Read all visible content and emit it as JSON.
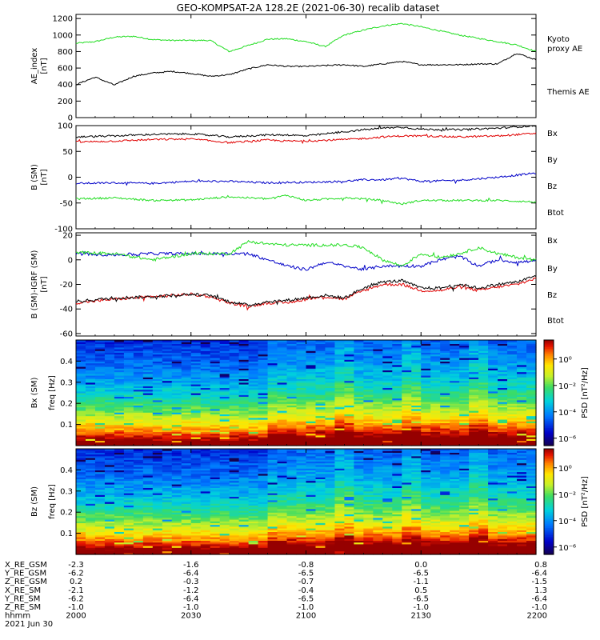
{
  "title": "GEO-KOMPSAT-2A 128.2E (2021-06-30) recalib dataset",
  "colors": {
    "black": "#000000",
    "red": "#e00000",
    "blue": "#0000c8",
    "green": "#22dd22",
    "kyoto": "#22dd22"
  },
  "chart_data": [
    {
      "type": "line",
      "ylabel": "AE_index",
      "yunit": "[nT]",
      "ylim": [
        0,
        1250
      ],
      "yticks": [
        "0",
        "200",
        "400",
        "600",
        "800",
        "1000",
        "1200"
      ],
      "xlim": [
        0,
        120
      ],
      "series": [
        {
          "name": "Kyoto\nproxy AE",
          "label_lines": [
            "Kyoto",
            "proxy AE"
          ],
          "color": "#22dd22",
          "x": [
            0,
            5,
            10,
            15,
            20,
            25,
            30,
            35,
            40,
            45,
            50,
            55,
            60,
            65,
            70,
            75,
            80,
            85,
            90,
            95,
            100,
            105,
            110,
            115,
            120
          ],
          "y": [
            900,
            920,
            975,
            985,
            945,
            935,
            935,
            935,
            800,
            875,
            950,
            955,
            920,
            860,
            1000,
            1060,
            1110,
            1140,
            1100,
            1050,
            1000,
            960,
            920,
            880,
            800
          ]
        },
        {
          "name": "Themis AE",
          "label_lines": [
            "Themis AE"
          ],
          "color": "#000000",
          "x": [
            0,
            5,
            10,
            15,
            20,
            25,
            30,
            35,
            40,
            45,
            50,
            55,
            60,
            65,
            70,
            75,
            80,
            85,
            90,
            95,
            100,
            105,
            110,
            115,
            120
          ],
          "y": [
            400,
            490,
            395,
            500,
            540,
            560,
            535,
            500,
            520,
            590,
            640,
            620,
            620,
            630,
            640,
            620,
            650,
            680,
            640,
            640,
            640,
            650,
            650,
            780,
            700
          ]
        }
      ]
    },
    {
      "type": "line",
      "ylabel": "B (SM)",
      "yunit": "[nT]",
      "ylim": [
        -100,
        100
      ],
      "yticks": [
        "-100",
        "-50",
        "0",
        "50",
        "100"
      ],
      "xlim": [
        0,
        120
      ],
      "series": [
        {
          "name": "Bx",
          "color": "#0000c8",
          "x": [
            0,
            10,
            20,
            30,
            40,
            50,
            55,
            60,
            70,
            75,
            80,
            85,
            90,
            100,
            110,
            120
          ],
          "y": [
            -12,
            -11,
            -12,
            -8,
            -8,
            -11,
            -10,
            -10,
            -8,
            -5,
            -5,
            -2,
            -8,
            -6,
            0,
            8
          ]
        },
        {
          "name": "By",
          "color": "#22dd22",
          "x": [
            0,
            10,
            20,
            30,
            40,
            50,
            55,
            60,
            70,
            75,
            80,
            85,
            90,
            100,
            110,
            120
          ],
          "y": [
            -42,
            -40,
            -45,
            -44,
            -38,
            -42,
            -35,
            -45,
            -40,
            -42,
            -45,
            -52,
            -45,
            -45,
            -45,
            -48
          ]
        },
        {
          "name": "Bz",
          "color": "#e00000",
          "x": [
            0,
            10,
            20,
            30,
            40,
            50,
            55,
            60,
            70,
            75,
            80,
            85,
            90,
            100,
            110,
            120
          ],
          "y": [
            68,
            70,
            73,
            74,
            67,
            72,
            70,
            70,
            73,
            75,
            78,
            80,
            80,
            78,
            80,
            85
          ]
        },
        {
          "name": "Btot",
          "color": "#000000",
          "x": [
            0,
            10,
            20,
            30,
            40,
            50,
            55,
            60,
            70,
            75,
            80,
            85,
            90,
            100,
            110,
            120
          ],
          "y": [
            78,
            80,
            83,
            84,
            78,
            82,
            82,
            80,
            88,
            92,
            95,
            97,
            93,
            92,
            95,
            100
          ]
        }
      ]
    },
    {
      "type": "line",
      "ylabel": "B (SM)-IGRF (SM)",
      "yunit": "[nT]",
      "ylim": [
        -62,
        22
      ],
      "yticks": [
        "-60",
        "-40",
        "-20",
        "0",
        "20"
      ],
      "xlim": [
        0,
        120
      ],
      "series": [
        {
          "name": "Bx",
          "color": "#0000c8",
          "x": [
            0,
            10,
            20,
            30,
            35,
            40,
            45,
            50,
            55,
            60,
            65,
            70,
            75,
            80,
            85,
            90,
            95,
            100,
            105,
            110,
            115,
            120
          ],
          "y": [
            5,
            4,
            5,
            5,
            5,
            5,
            5,
            0,
            -5,
            -8,
            -2,
            -5,
            -8,
            -5,
            -5,
            -5,
            0,
            3,
            -5,
            0,
            -2,
            -1
          ]
        },
        {
          "name": "By",
          "color": "#22dd22",
          "x": [
            0,
            10,
            20,
            30,
            35,
            40,
            45,
            50,
            55,
            60,
            65,
            70,
            75,
            80,
            85,
            90,
            95,
            100,
            105,
            110,
            115,
            120
          ],
          "y": [
            6,
            5,
            0,
            5,
            5,
            5,
            15,
            13,
            12,
            12,
            12,
            12,
            10,
            0,
            -5,
            5,
            2,
            5,
            10,
            5,
            2,
            0
          ]
        },
        {
          "name": "Bz",
          "color": "#e00000",
          "x": [
            0,
            10,
            20,
            30,
            35,
            40,
            45,
            50,
            55,
            60,
            65,
            70,
            75,
            80,
            85,
            90,
            95,
            100,
            105,
            110,
            115,
            120
          ],
          "y": [
            -35,
            -32,
            -30,
            -28,
            -30,
            -35,
            -38,
            -35,
            -35,
            -32,
            -30,
            -32,
            -25,
            -20,
            -20,
            -25,
            -25,
            -22,
            -25,
            -22,
            -20,
            -15
          ]
        },
        {
          "name": "Btot",
          "color": "#000000",
          "x": [
            0,
            10,
            20,
            30,
            35,
            40,
            45,
            50,
            55,
            60,
            65,
            70,
            75,
            80,
            85,
            90,
            95,
            100,
            105,
            110,
            115,
            120
          ],
          "y": [
            -34,
            -31,
            -30,
            -28,
            -29,
            -34,
            -37,
            -34,
            -33,
            -31,
            -29,
            -31,
            -23,
            -18,
            -17,
            -23,
            -23,
            -20,
            -23,
            -20,
            -18,
            -13
          ]
        }
      ]
    },
    {
      "type": "heatmap",
      "ylabel": "Bx (SM)",
      "yunit": "freq [Hz]",
      "ylim": [
        0,
        0.5
      ],
      "yticks": [
        "0.1",
        "0.2",
        "0.3",
        "0.4"
      ],
      "colorbar_label": "PSD [nT²/Hz]",
      "colorbar_ticks": [
        "10⁰",
        "10⁻²",
        "10⁻⁴",
        "10⁻⁶"
      ],
      "columns": 48,
      "column_activity": [
        0.3,
        0.3,
        0.3,
        0.3,
        0.3,
        0.3,
        0.3,
        0.3,
        0.3,
        0.3,
        0.3,
        0.3,
        0.3,
        0.3,
        0.3,
        0.3,
        0.3,
        0.3,
        0.3,
        0.3,
        0.6,
        0.6,
        0.6,
        0.6,
        0.6,
        0.6,
        0.6,
        0.9,
        0.9,
        0.6,
        0.6,
        0.6,
        0.6,
        0.6,
        0.9,
        0.9,
        0.6,
        0.6,
        0.6,
        0.6,
        0.6,
        0.9,
        0.9,
        0.6,
        0.6,
        0.6,
        0.6,
        0.6
      ]
    },
    {
      "type": "heatmap",
      "ylabel": "Bz (SM)",
      "yunit": "freq [Hz]",
      "ylim": [
        0,
        0.5
      ],
      "yticks": [
        "0.1",
        "0.2",
        "0.3",
        "0.4"
      ],
      "colorbar_label": "PSD [nT²/Hz]",
      "colorbar_ticks": [
        "10⁰",
        "10⁻²",
        "10⁻⁴",
        "10⁻⁶"
      ],
      "columns": 48,
      "column_activity": [
        0.3,
        0.3,
        0.3,
        0.3,
        0.3,
        0.3,
        0.3,
        0.3,
        0.3,
        0.3,
        0.3,
        0.3,
        0.3,
        0.3,
        0.3,
        0.3,
        0.3,
        0.3,
        0.3,
        0.3,
        0.6,
        0.6,
        0.6,
        0.6,
        0.6,
        0.6,
        0.6,
        0.9,
        0.9,
        0.6,
        0.6,
        0.6,
        0.6,
        0.6,
        0.9,
        0.9,
        0.6,
        0.6,
        0.6,
        0.6,
        0.6,
        0.9,
        0.9,
        0.6,
        0.6,
        0.6,
        0.6,
        0.6
      ]
    }
  ],
  "x_axis": {
    "row_labels": [
      "X_RE_GSM",
      "Y_RE_GSM",
      "Z_RE_GSM",
      "X_RE_SM",
      "Y_RE_SM",
      "Z_RE_SM",
      "hhmm",
      "2021 Jun 30"
    ],
    "columns": [
      {
        "values": [
          "-2.3",
          "-6.2",
          "0.2",
          "-2.1",
          "-6.2",
          "-1.0",
          "2000"
        ]
      },
      {
        "values": [
          "-1.6",
          "-6.4",
          "-0.3",
          "-1.2",
          "-6.4",
          "-1.0",
          "2030"
        ]
      },
      {
        "values": [
          "-0.8",
          "-6.5",
          "-0.7",
          "-0.4",
          "-6.5",
          "-1.0",
          "2100"
        ]
      },
      {
        "values": [
          "0.0",
          "-6.5",
          "-1.1",
          "0.5",
          "-6.5",
          "-1.0",
          "2130"
        ]
      },
      {
        "values": [
          "0.8",
          "-6.4",
          "-1.5",
          "1.3",
          "-6.4",
          "-1.0",
          "2200"
        ]
      }
    ]
  }
}
